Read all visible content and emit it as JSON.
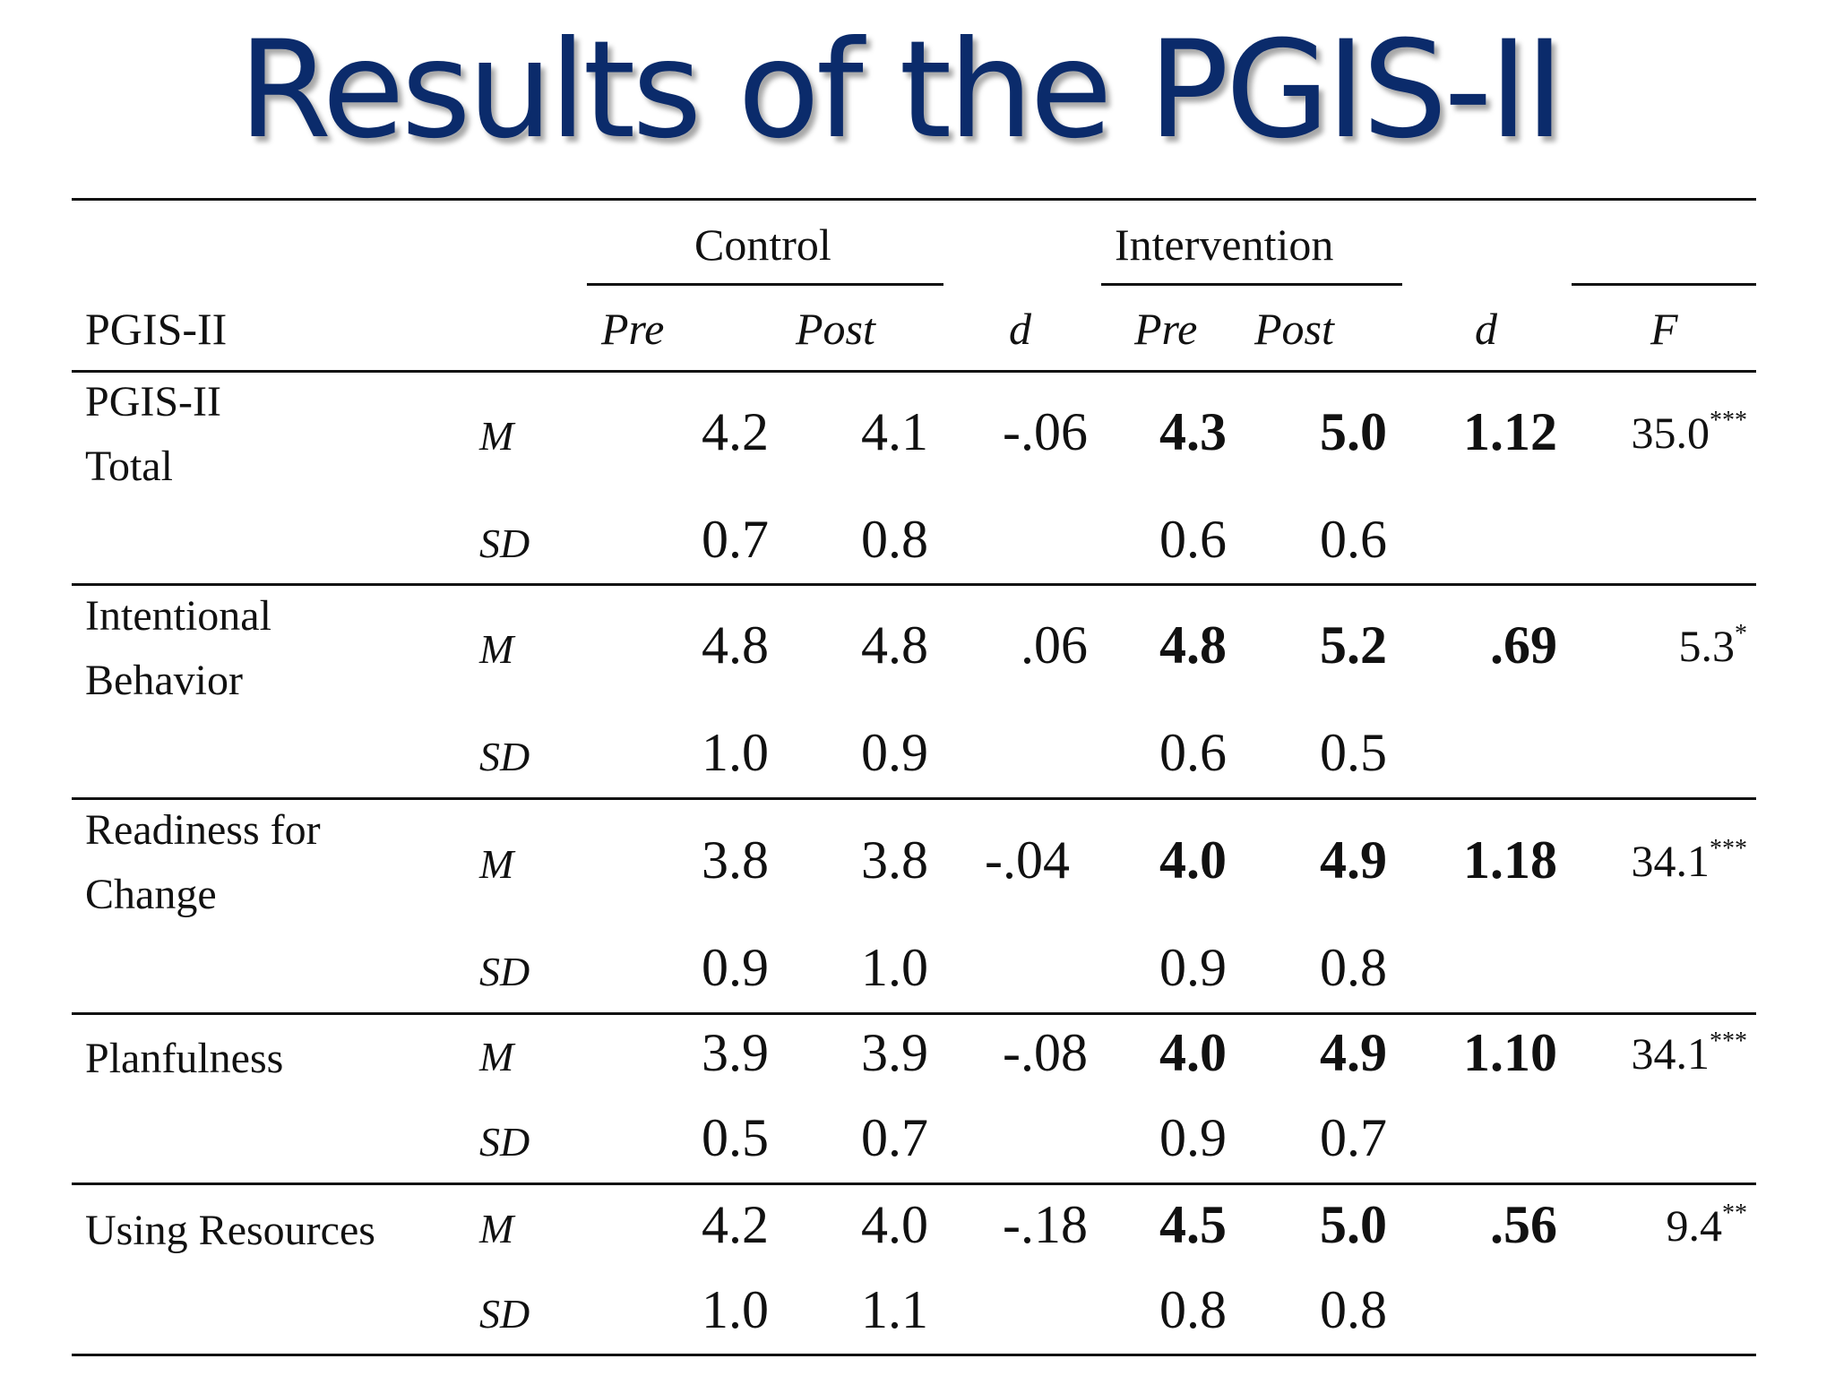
{
  "title": "Results of the PGIS-II",
  "header": {
    "group_control": "Control",
    "group_intervention": "Intervention",
    "row_label": "PGIS-II",
    "pre": "Pre",
    "post": "Post",
    "d": "d",
    "f": "F"
  },
  "stat_labels": {
    "m": "M",
    "sd": "SD"
  },
  "rows": [
    {
      "label_lines": [
        "PGIS-II",
        "Total"
      ],
      "m": {
        "c_pre": "4.2",
        "c_post": "4.1",
        "c_d": "-.06",
        "i_pre": "4.3",
        "i_post": "5.0",
        "i_d": "1.12",
        "f": "35.0",
        "sig": "***"
      },
      "sd": {
        "c_pre": "0.7",
        "c_post": "0.8",
        "i_pre": "0.6",
        "i_post": "0.6"
      }
    },
    {
      "label_lines": [
        "Intentional",
        "Behavior"
      ],
      "m": {
        "c_pre": "4.8",
        "c_post": "4.8",
        "c_d": ".06",
        "i_pre": "4.8",
        "i_post": "5.2",
        "i_d": ".69",
        "f": "5.3",
        "sig": "*"
      },
      "sd": {
        "c_pre": "1.0",
        "c_post": "0.9",
        "i_pre": "0.6",
        "i_post": "0.5"
      }
    },
    {
      "label_lines": [
        "Readiness for",
        "Change"
      ],
      "m": {
        "c_pre": "3.8",
        "c_post": "3.8",
        "c_d": "-.04",
        "i_pre": "4.0",
        "i_post": "4.9",
        "i_d": "1.18",
        "f": "34.1",
        "sig": "***"
      },
      "sd": {
        "c_pre": "0.9",
        "c_post": "1.0",
        "i_pre": "0.9",
        "i_post": "0.8"
      }
    },
    {
      "label_lines": [
        "Planfulness"
      ],
      "m": {
        "c_pre": "3.9",
        "c_post": "3.9",
        "c_d": "-.08",
        "i_pre": "4.0",
        "i_post": "4.9",
        "i_d": "1.10",
        "f": "34.1",
        "sig": "***"
      },
      "sd": {
        "c_pre": "0.5",
        "c_post": "0.7",
        "i_pre": "0.9",
        "i_post": "0.7"
      }
    },
    {
      "label_lines": [
        "Using Resources"
      ],
      "m": {
        "c_pre": "4.2",
        "c_post": "4.0",
        "c_d": "-.18",
        "i_pre": "4.5",
        "i_post": "5.0",
        "i_d": ".56",
        "f": "9.4",
        "sig": "**"
      },
      "sd": {
        "c_pre": "1.0",
        "c_post": "1.1",
        "i_pre": "0.8",
        "i_post": "0.8"
      }
    }
  ]
}
